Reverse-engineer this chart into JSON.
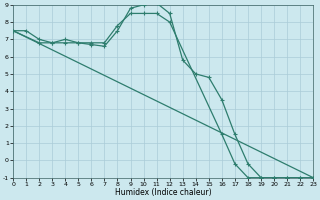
{
  "xlabel": "Humidex (Indice chaleur)",
  "bg_color": "#cce8ee",
  "grid_color": "#aaccd8",
  "line_color": "#2e7d6e",
  "xlim": [
    0,
    23
  ],
  "ylim": [
    -1,
    9
  ],
  "xticks": [
    0,
    1,
    2,
    3,
    4,
    5,
    6,
    7,
    8,
    9,
    10,
    11,
    12,
    13,
    14,
    15,
    16,
    17,
    18,
    19,
    20,
    21,
    22,
    23
  ],
  "yticks": [
    -1,
    0,
    1,
    2,
    3,
    4,
    5,
    6,
    7,
    8,
    9
  ],
  "line1_x": [
    0,
    1,
    2,
    3,
    4,
    5,
    6,
    7,
    8,
    9,
    10,
    11,
    12,
    13,
    14,
    15,
    16,
    17,
    18,
    19,
    20,
    21,
    22,
    23
  ],
  "line1_y": [
    7.5,
    7.5,
    7.0,
    6.8,
    7.0,
    6.8,
    6.7,
    6.6,
    7.5,
    8.8,
    9.0,
    9.1,
    8.5,
    5.8,
    5.0,
    4.8,
    3.5,
    1.5,
    -0.2,
    -1.0,
    -1.0,
    -1.0,
    -1.0,
    -1.0
  ],
  "line1_markers": [
    0,
    1,
    2,
    3,
    4,
    5,
    6,
    7,
    8,
    9,
    10,
    11,
    12,
    13,
    14,
    15,
    16,
    17,
    18,
    19,
    20,
    21,
    22,
    23
  ],
  "line2_x": [
    0,
    2,
    3,
    4,
    5,
    6,
    7,
    8,
    9,
    10,
    11,
    12,
    16,
    17,
    18,
    19,
    20,
    21,
    22,
    23
  ],
  "line2_y": [
    7.5,
    6.8,
    6.8,
    6.8,
    6.8,
    6.8,
    6.8,
    7.8,
    8.5,
    8.5,
    8.5,
    8.0,
    1.5,
    -0.2,
    -1.0,
    -1.0,
    -1.0,
    -1.0,
    -1.0,
    -1.0
  ],
  "line2_markers": [
    0,
    2,
    3,
    4,
    5,
    6,
    7,
    8,
    9,
    10,
    11,
    12,
    16,
    17,
    18,
    19,
    20,
    21,
    22,
    23
  ],
  "line3_x": [
    0,
    23
  ],
  "line3_y": [
    7.5,
    -1.0
  ]
}
